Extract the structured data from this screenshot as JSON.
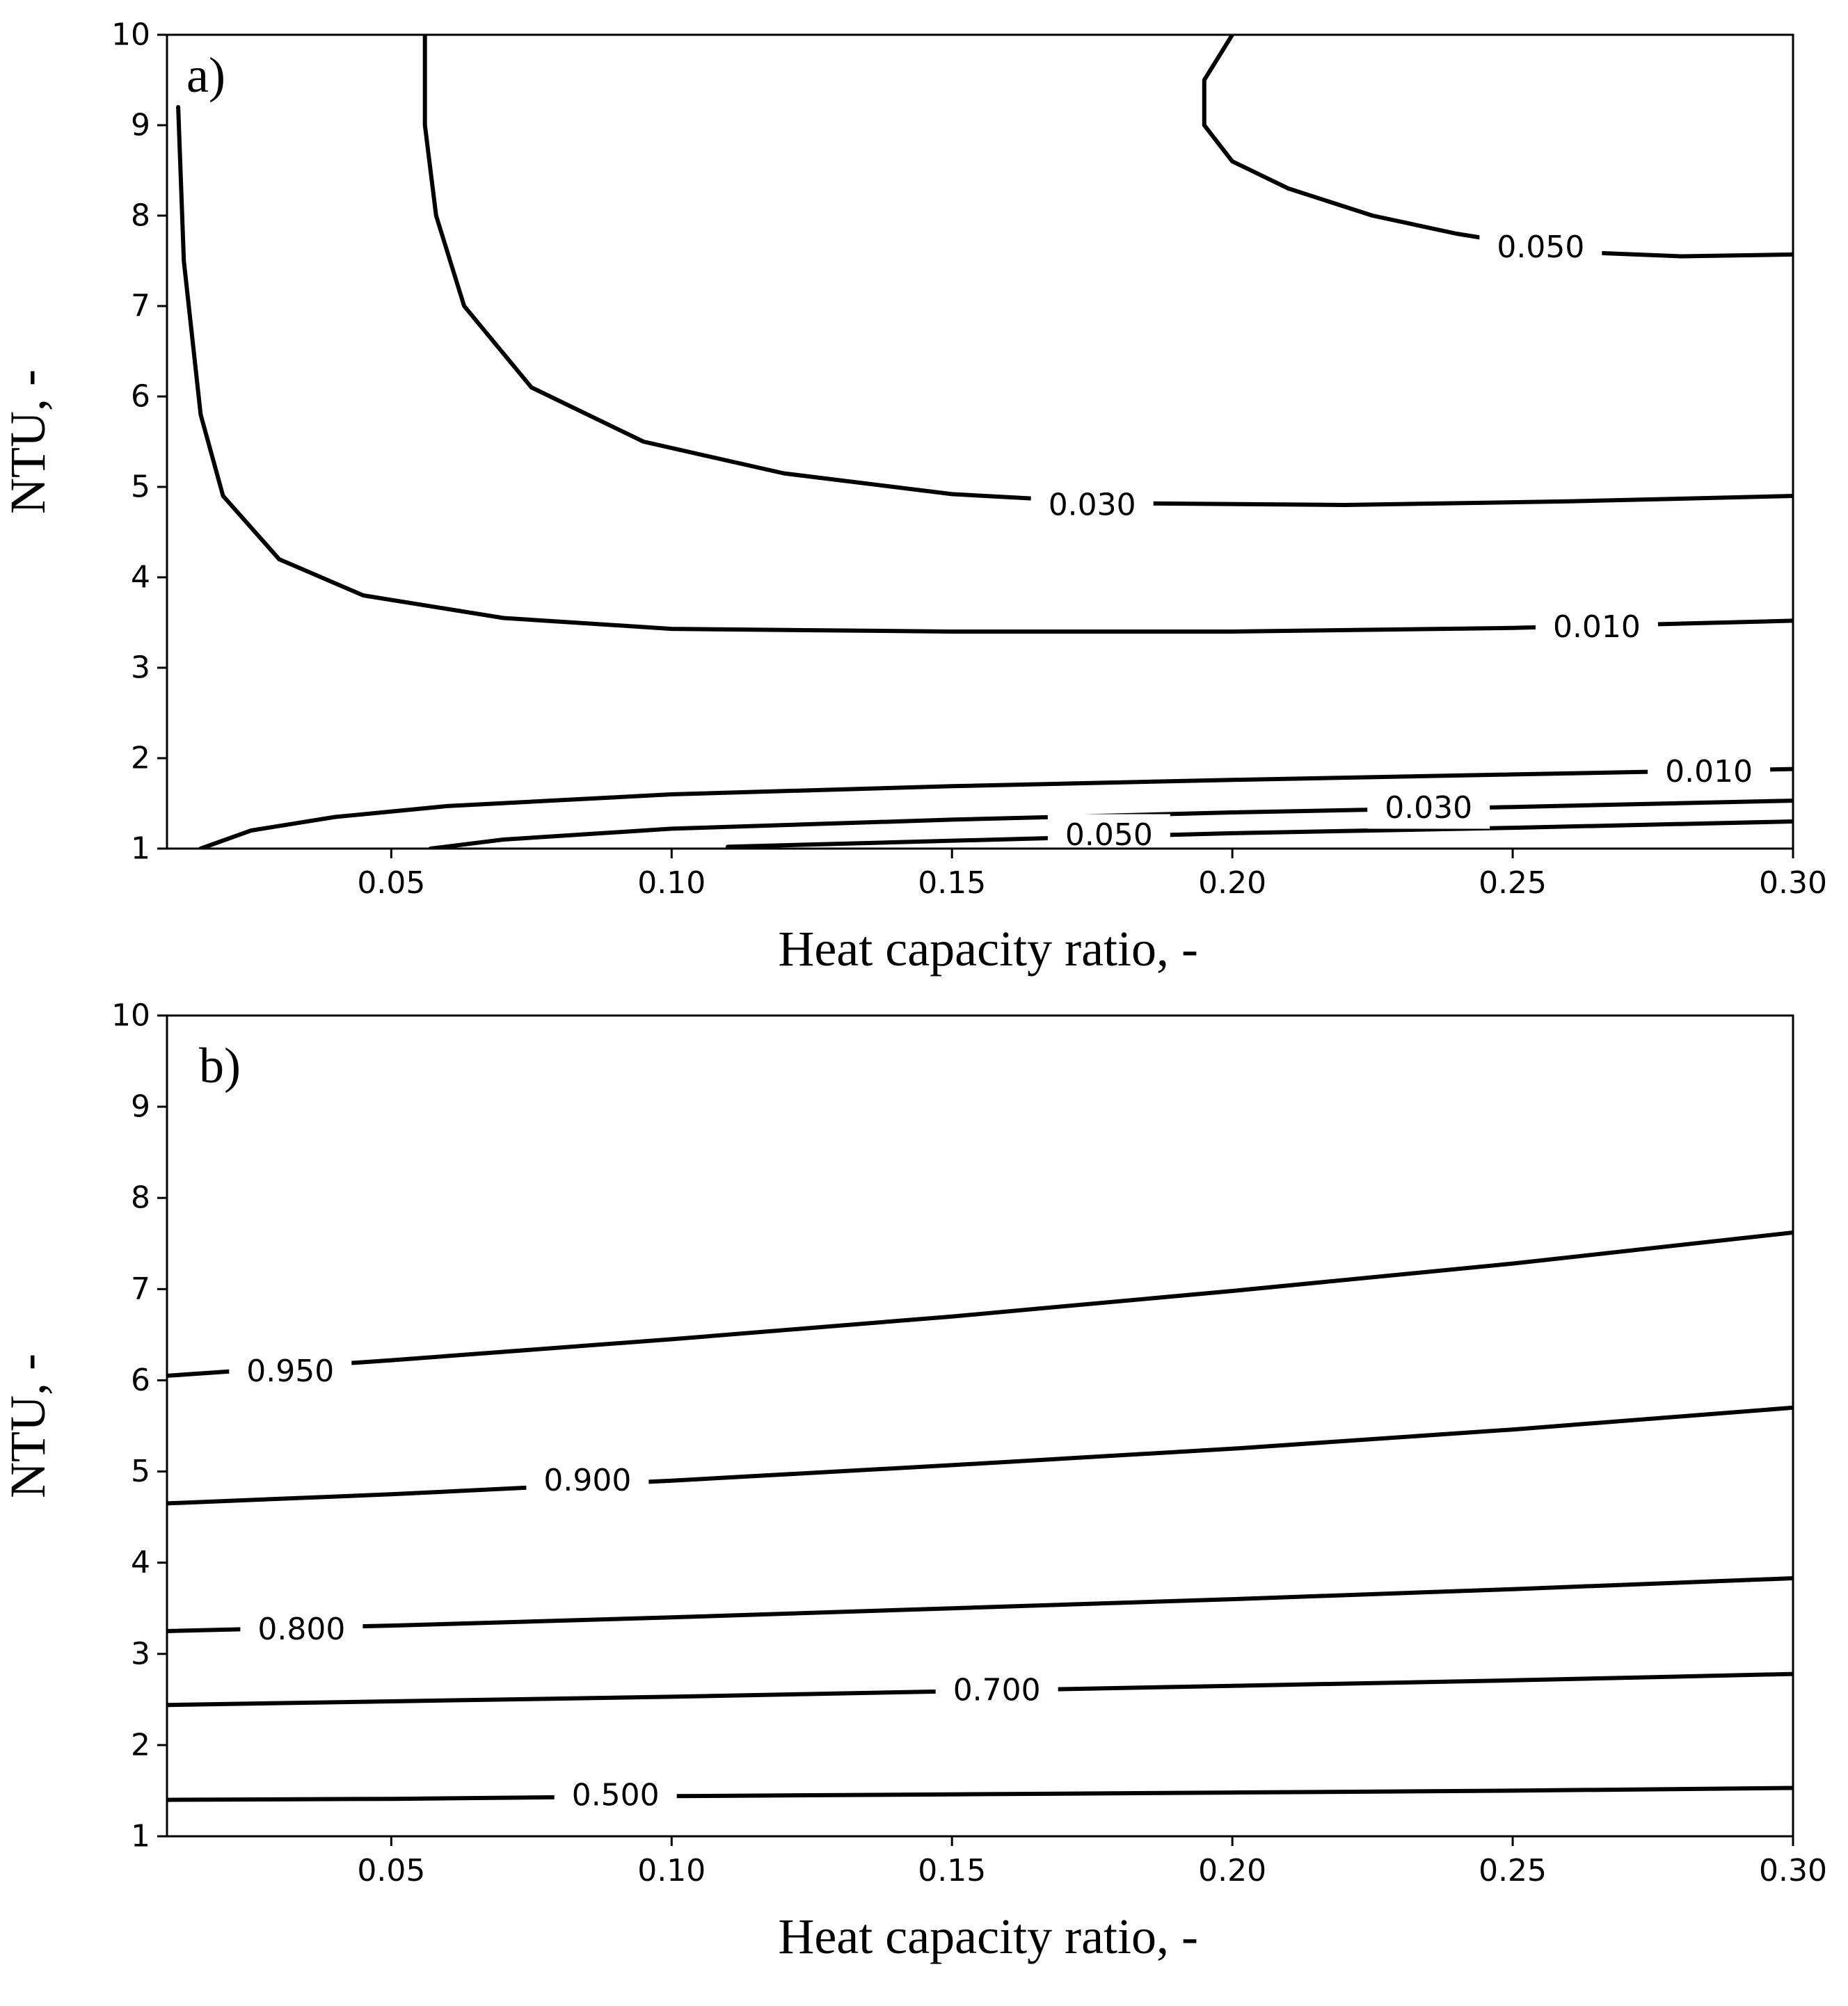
{
  "chart_data": [
    {
      "type": "contour",
      "panel": "a)",
      "xlabel": "Heat capacity ratio, -",
      "ylabel": "NTU, -",
      "xlim": [
        0.01,
        0.3
      ],
      "ylim": [
        1,
        10
      ],
      "xticks": [
        0.05,
        0.1,
        0.15,
        0.2,
        0.25,
        0.3
      ],
      "xtick_labels": [
        "0.05",
        "0.10",
        "0.15",
        "0.20",
        "0.25",
        "0.30"
      ],
      "yticks": [
        1,
        2,
        3,
        4,
        5,
        6,
        7,
        8,
        9,
        10
      ],
      "ytick_labels": [
        "1",
        "2",
        "3",
        "4",
        "5",
        "6",
        "7",
        "8",
        "9",
        "10"
      ],
      "series": [
        {
          "name": "0.010",
          "label": "0.010",
          "label_at": [
            0.265,
            3.45
          ],
          "points": [
            [
              0.012,
              9.2
            ],
            [
              0.013,
              7.5
            ],
            [
              0.016,
              5.8
            ],
            [
              0.02,
              4.9
            ],
            [
              0.03,
              4.2
            ],
            [
              0.045,
              3.8
            ],
            [
              0.07,
              3.55
            ],
            [
              0.1,
              3.43
            ],
            [
              0.15,
              3.4
            ],
            [
              0.2,
              3.4
            ],
            [
              0.25,
              3.44
            ],
            [
              0.3,
              3.52
            ]
          ]
        },
        {
          "name": "0.030",
          "label": "0.030",
          "label_at": [
            0.175,
            4.8
          ],
          "points": [
            [
              0.056,
              10.0
            ],
            [
              0.056,
              9.0
            ],
            [
              0.058,
              8.0
            ],
            [
              0.063,
              7.0
            ],
            [
              0.075,
              6.1
            ],
            [
              0.095,
              5.5
            ],
            [
              0.12,
              5.15
            ],
            [
              0.15,
              4.92
            ],
            [
              0.18,
              4.82
            ],
            [
              0.22,
              4.8
            ],
            [
              0.26,
              4.84
            ],
            [
              0.3,
              4.9
            ]
          ]
        },
        {
          "name": "0.050",
          "label": "0.050",
          "label_at": [
            0.255,
            7.65
          ],
          "points": [
            [
              0.2,
              10.0
            ],
            [
              0.195,
              9.5
            ],
            [
              0.195,
              9.0
            ],
            [
              0.2,
              8.6
            ],
            [
              0.21,
              8.3
            ],
            [
              0.225,
              8.0
            ],
            [
              0.24,
              7.8
            ],
            [
              0.26,
              7.6
            ],
            [
              0.28,
              7.55
            ],
            [
              0.3,
              7.57
            ]
          ]
        },
        {
          "name": "0.010",
          "label": "0.010",
          "label_at": [
            0.285,
            1.85
          ],
          "points": [
            [
              0.016,
              1.0
            ],
            [
              0.025,
              1.2
            ],
            [
              0.04,
              1.35
            ],
            [
              0.06,
              1.47
            ],
            [
              0.1,
              1.6
            ],
            [
              0.15,
              1.69
            ],
            [
              0.2,
              1.76
            ],
            [
              0.25,
              1.82
            ],
            [
              0.3,
              1.88
            ]
          ]
        },
        {
          "name": "0.030",
          "label": "0.030",
          "label_at": [
            0.235,
            1.45
          ],
          "points": [
            [
              0.057,
              1.0
            ],
            [
              0.07,
              1.1
            ],
            [
              0.1,
              1.22
            ],
            [
              0.15,
              1.32
            ],
            [
              0.2,
              1.4
            ],
            [
              0.25,
              1.46
            ],
            [
              0.3,
              1.53
            ]
          ]
        },
        {
          "name": "0.050",
          "label": "0.050",
          "label_at": [
            0.178,
            1.15
          ],
          "points": [
            [
              0.11,
              1.02
            ],
            [
              0.14,
              1.07
            ],
            [
              0.17,
              1.12
            ],
            [
              0.2,
              1.17
            ],
            [
              0.25,
              1.23
            ],
            [
              0.3,
              1.3
            ]
          ]
        }
      ]
    },
    {
      "type": "contour",
      "panel": "b)",
      "xlabel": "Heat capacity ratio, -",
      "ylabel": "NTU, -",
      "xlim": [
        0.01,
        0.3
      ],
      "ylim": [
        1,
        10
      ],
      "xticks": [
        0.05,
        0.1,
        0.15,
        0.2,
        0.25,
        0.3
      ],
      "xtick_labels": [
        "0.05",
        "0.10",
        "0.15",
        "0.20",
        "0.25",
        "0.30"
      ],
      "yticks": [
        1,
        2,
        3,
        4,
        5,
        6,
        7,
        8,
        9,
        10
      ],
      "ytick_labels": [
        "1",
        "2",
        "3",
        "4",
        "5",
        "6",
        "7",
        "8",
        "9",
        "10"
      ],
      "series": [
        {
          "name": "0.950",
          "label": "0.950",
          "label_at": [
            0.032,
            6.1
          ],
          "points": [
            [
              0.01,
              6.05
            ],
            [
              0.05,
              6.22
            ],
            [
              0.1,
              6.45
            ],
            [
              0.15,
              6.7
            ],
            [
              0.2,
              6.98
            ],
            [
              0.25,
              7.28
            ],
            [
              0.3,
              7.62
            ]
          ]
        },
        {
          "name": "0.900",
          "label": "0.900",
          "label_at": [
            0.085,
            4.9
          ],
          "points": [
            [
              0.01,
              4.65
            ],
            [
              0.05,
              4.75
            ],
            [
              0.1,
              4.9
            ],
            [
              0.15,
              5.07
            ],
            [
              0.2,
              5.25
            ],
            [
              0.25,
              5.46
            ],
            [
              0.3,
              5.7
            ]
          ]
        },
        {
          "name": "0.800",
          "label": "0.800",
          "label_at": [
            0.034,
            3.27
          ],
          "points": [
            [
              0.01,
              3.25
            ],
            [
              0.05,
              3.31
            ],
            [
              0.1,
              3.4
            ],
            [
              0.15,
              3.5
            ],
            [
              0.2,
              3.6
            ],
            [
              0.25,
              3.71
            ],
            [
              0.3,
              3.83
            ]
          ]
        },
        {
          "name": "0.700",
          "label": "0.700",
          "label_at": [
            0.158,
            2.6
          ],
          "points": [
            [
              0.01,
              2.44
            ],
            [
              0.05,
              2.48
            ],
            [
              0.1,
              2.53
            ],
            [
              0.15,
              2.59
            ],
            [
              0.2,
              2.65
            ],
            [
              0.25,
              2.71
            ],
            [
              0.3,
              2.78
            ]
          ]
        },
        {
          "name": "0.500",
          "label": "0.500",
          "label_at": [
            0.09,
            1.45
          ],
          "points": [
            [
              0.01,
              1.4
            ],
            [
              0.05,
              1.41
            ],
            [
              0.1,
              1.44
            ],
            [
              0.15,
              1.46
            ],
            [
              0.2,
              1.48
            ],
            [
              0.25,
              1.5
            ],
            [
              0.3,
              1.53
            ]
          ]
        }
      ]
    }
  ]
}
